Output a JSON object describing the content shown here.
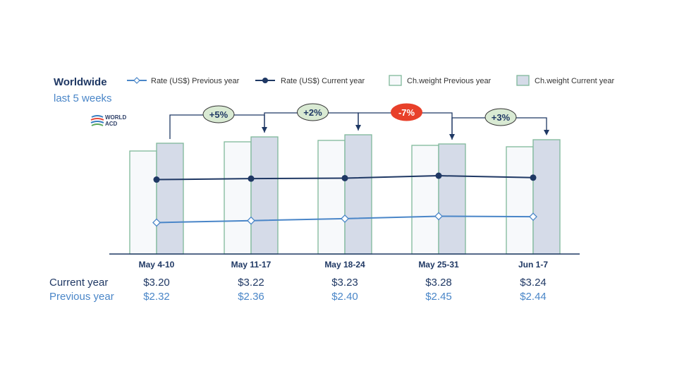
{
  "header": {
    "title": "Worldwide",
    "subtitle": "last 5 weeks"
  },
  "logo": {
    "line1": "WORLD",
    "line2": "ACD"
  },
  "colors": {
    "rate_prev": "#4a86c8",
    "rate_cur": "#1f3864",
    "bar_prev_fill": "#f7f9fb",
    "bar_prev_stroke": "#7fb89a",
    "bar_cur_fill": "#d5dbe8",
    "bar_cur_stroke": "#7fb89a",
    "bubble_pos": "#d9ead3",
    "bubble_neg": "#e8402a"
  },
  "chart_data": {
    "type": "bar",
    "categories": [
      "May 4-10",
      "May 11-17",
      "May 18-24",
      "May 25-31",
      "Jun 1-7"
    ],
    "series": [
      {
        "name": "Ch.weight Previous year",
        "type": "bar",
        "values": [
          146,
          159,
          161,
          154,
          152
        ]
      },
      {
        "name": "Ch.weight Current year",
        "type": "bar",
        "values": [
          157,
          166,
          169,
          156,
          162
        ]
      },
      {
        "name": "Rate (US$) Previous year",
        "type": "line",
        "values": [
          2.32,
          2.36,
          2.4,
          2.45,
          2.44
        ]
      },
      {
        "name": "Rate (US$) Current year",
        "type": "line",
        "values": [
          3.2,
          3.22,
          3.23,
          3.28,
          3.24
        ]
      }
    ],
    "changes": [
      "+5%",
      "+2%",
      "-7%",
      "+3%"
    ],
    "legend_position": "top",
    "grid": false
  },
  "table": {
    "current_label": "Current year",
    "previous_label": "Previous year",
    "current": [
      "$3.20",
      "$3.22",
      "$3.23",
      "$3.28",
      "$3.24"
    ],
    "previous": [
      "$2.32",
      "$2.36",
      "$2.40",
      "$2.45",
      "$2.44"
    ]
  }
}
